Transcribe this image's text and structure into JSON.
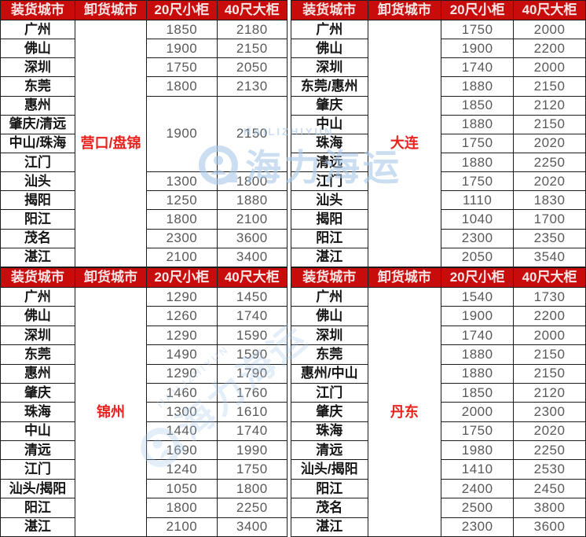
{
  "colors": {
    "header_bg": "#c80b0b",
    "header_text": "#f8e7e7",
    "dest_text": "#e8211d",
    "city_text": "#141414",
    "num_text": "#595959",
    "border": "#1c1c1c",
    "watermark": "#a9c9e9"
  },
  "headers": [
    "装货城市",
    "卸货城市",
    "20尺小柜",
    "40尺大柜"
  ],
  "watermark": {
    "en": "HAILIZHIYUN",
    "cn": "海力海运"
  },
  "chart_data": [
    {
      "type": "table",
      "position": "top-left",
      "columns": [
        "装货城市",
        "卸货城市",
        "20尺小柜",
        "40尺大柜"
      ],
      "destination": "营口/盘锦",
      "rows": [
        {
          "city": "广州",
          "v20": "1850",
          "v40": "2180"
        },
        {
          "city": "佛山",
          "v20": "1900",
          "v40": "2150"
        },
        {
          "city": "深圳",
          "v20": "1750",
          "v40": "2050"
        },
        {
          "city": "东莞",
          "v20": "1800",
          "v40": "2130"
        },
        {
          "city": "惠州",
          "v20": "1900",
          "v40": "2150",
          "rowspan": 4
        },
        {
          "city": "肇庆/清远"
        },
        {
          "city": "中山/珠海"
        },
        {
          "city": "江门"
        },
        {
          "city": "汕头",
          "v20": "1300",
          "v40": "1800"
        },
        {
          "city": "揭阳",
          "v20": "1250",
          "v40": "1880"
        },
        {
          "city": "阳江",
          "v20": "1800",
          "v40": "2100"
        },
        {
          "city": "茂名",
          "v20": "2300",
          "v40": "3600"
        },
        {
          "city": "湛江",
          "v20": "2100",
          "v40": "3400"
        }
      ]
    },
    {
      "type": "table",
      "position": "top-right",
      "columns": [
        "装货城市",
        "卸货城市",
        "20尺小柜",
        "40尺大柜"
      ],
      "destination": "大连",
      "rows": [
        {
          "city": "广州",
          "v20": "1750",
          "v40": "2000"
        },
        {
          "city": "佛山",
          "v20": "1900",
          "v40": "2200"
        },
        {
          "city": "深圳",
          "v20": "1740",
          "v40": "2000"
        },
        {
          "city": "东莞/惠州",
          "v20": "1880",
          "v40": "2150"
        },
        {
          "city": "肇庆",
          "v20": "1850",
          "v40": "2120"
        },
        {
          "city": "中山",
          "v20": "1880",
          "v40": "2150"
        },
        {
          "city": "珠海",
          "v20": "1750",
          "v40": "2020"
        },
        {
          "city": "清远",
          "v20": "1880",
          "v40": "2250"
        },
        {
          "city": "江门",
          "v20": "1750",
          "v40": "2020"
        },
        {
          "city": "汕头",
          "v20": "1110",
          "v40": "1830"
        },
        {
          "city": "揭阳",
          "v20": "1040",
          "v40": "1700"
        },
        {
          "city": "阳江",
          "v20": "2300",
          "v40": "2350"
        },
        {
          "city": "湛江",
          "v20": "2050",
          "v40": "3540"
        }
      ]
    },
    {
      "type": "table",
      "position": "bottom-left",
      "columns": [
        "装货城市",
        "卸货城市",
        "20尺小柜",
        "40尺大柜"
      ],
      "destination": "锦州",
      "rows": [
        {
          "city": "广州",
          "v20": "1290",
          "v40": "1450"
        },
        {
          "city": "佛山",
          "v20": "1260",
          "v40": "1740"
        },
        {
          "city": "深圳",
          "v20": "1290",
          "v40": "1590"
        },
        {
          "city": "东莞",
          "v20": "1490",
          "v40": "1590"
        },
        {
          "city": "惠州",
          "v20": "1290",
          "v40": "1790"
        },
        {
          "city": "肇庆",
          "v20": "1460",
          "v40": "1760"
        },
        {
          "city": "珠海",
          "v20": "1300",
          "v40": "1610"
        },
        {
          "city": "中山",
          "v20": "1440",
          "v40": "1740"
        },
        {
          "city": "清远",
          "v20": "1690",
          "v40": "1990"
        },
        {
          "city": "江门",
          "v20": "1240",
          "v40": "1750"
        },
        {
          "city": "汕头/揭阳",
          "v20": "1050",
          "v40": "1800"
        },
        {
          "city": "阳江",
          "v20": "1800",
          "v40": "2250"
        },
        {
          "city": "湛江",
          "v20": "2100",
          "v40": "3400"
        }
      ]
    },
    {
      "type": "table",
      "position": "bottom-right",
      "columns": [
        "装货城市",
        "卸货城市",
        "20尺小柜",
        "40尺大柜"
      ],
      "destination": "丹东",
      "rows": [
        {
          "city": "广州",
          "v20": "1540",
          "v40": "1730"
        },
        {
          "city": "佛山",
          "v20": "1900",
          "v40": "2200"
        },
        {
          "city": "深圳",
          "v20": "1740",
          "v40": "2000"
        },
        {
          "city": "东莞",
          "v20": "1880",
          "v40": "2150"
        },
        {
          "city": "惠州/中山",
          "v20": "1880",
          "v40": "2150"
        },
        {
          "city": "江门",
          "v20": "1850",
          "v40": "2120"
        },
        {
          "city": "肇庆",
          "v20": "2000",
          "v40": "2300"
        },
        {
          "city": "珠海",
          "v20": "1750",
          "v40": "2020"
        },
        {
          "city": "清远",
          "v20": "1980",
          "v40": "2250"
        },
        {
          "city": "汕头/揭阳",
          "v20": "1410",
          "v40": "2530"
        },
        {
          "city": "阳江",
          "v20": "2400",
          "v40": "2450"
        },
        {
          "city": "茂名",
          "v20": "2500",
          "v40": "3800"
        },
        {
          "city": "湛江",
          "v20": "2300",
          "v40": "3600"
        }
      ]
    }
  ]
}
